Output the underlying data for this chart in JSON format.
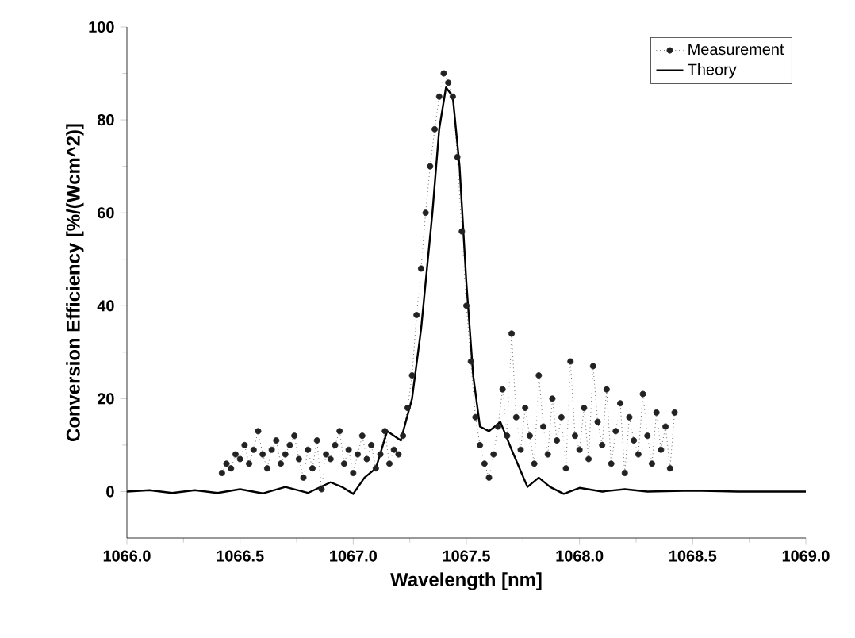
{
  "chart_data": {
    "type": "line",
    "xlabel": "Wavelength [nm]",
    "ylabel": "Conversion Efficiency [%/(Wcm^2)]",
    "xlim": [
      1066.0,
      1069.0
    ],
    "ylim": [
      -10,
      100
    ],
    "xticks": [
      {
        "value": 1066.0,
        "label": "1066.0"
      },
      {
        "value": 1066.5,
        "label": "1066.5"
      },
      {
        "value": 1067.0,
        "label": "1067.0"
      },
      {
        "value": 1067.5,
        "label": "1067.5"
      },
      {
        "value": 1068.0,
        "label": "1068.0"
      },
      {
        "value": 1068.5,
        "label": "1068.5"
      },
      {
        "value": 1069.0,
        "label": "1069.0"
      }
    ],
    "yticks": [
      0,
      20,
      40,
      60,
      80,
      100
    ],
    "legend": "top right",
    "grid": false,
    "series": [
      {
        "name": "Measurement",
        "color": "#222222",
        "marker": "circle",
        "line_style": "dotted",
        "x": [
          1066.42,
          1066.44,
          1066.46,
          1066.48,
          1066.5,
          1066.52,
          1066.54,
          1066.56,
          1066.58,
          1066.6,
          1066.62,
          1066.64,
          1066.66,
          1066.68,
          1066.7,
          1066.72,
          1066.74,
          1066.76,
          1066.78,
          1066.8,
          1066.82,
          1066.84,
          1066.86,
          1066.88,
          1066.9,
          1066.92,
          1066.94,
          1066.96,
          1066.98,
          1067.0,
          1067.02,
          1067.04,
          1067.06,
          1067.08,
          1067.1,
          1067.12,
          1067.14,
          1067.16,
          1067.18,
          1067.2,
          1067.22,
          1067.24,
          1067.26,
          1067.28,
          1067.3,
          1067.32,
          1067.34,
          1067.36,
          1067.38,
          1067.4,
          1067.42,
          1067.44,
          1067.46,
          1067.48,
          1067.5,
          1067.52,
          1067.54,
          1067.56,
          1067.58,
          1067.6,
          1067.62,
          1067.64,
          1067.66,
          1067.68,
          1067.7,
          1067.72,
          1067.74,
          1067.76,
          1067.78,
          1067.8,
          1067.82,
          1067.84,
          1067.86,
          1067.88,
          1067.9,
          1067.92,
          1067.94,
          1067.96,
          1067.98,
          1068.0,
          1068.02,
          1068.04,
          1068.06,
          1068.08,
          1068.1,
          1068.12,
          1068.14,
          1068.16,
          1068.18,
          1068.2,
          1068.22,
          1068.24,
          1068.26,
          1068.28,
          1068.3,
          1068.32,
          1068.34,
          1068.36,
          1068.38,
          1068.4,
          1068.42
        ],
        "values": [
          4,
          6,
          5,
          8,
          7,
          10,
          6,
          9,
          13,
          8,
          5,
          9,
          11,
          6,
          8,
          10,
          12,
          7,
          3,
          9,
          5,
          11,
          0.5,
          8,
          7,
          10,
          13,
          6,
          9,
          4,
          8,
          12,
          7,
          10,
          5,
          8,
          13,
          6,
          9,
          8,
          12,
          18,
          25,
          38,
          48,
          60,
          70,
          78,
          85,
          90,
          88,
          85,
          72,
          56,
          40,
          28,
          16,
          10,
          6,
          3,
          8,
          14,
          22,
          12,
          34,
          16,
          9,
          18,
          12,
          6,
          25,
          14,
          8,
          20,
          11,
          16,
          5,
          28,
          12,
          9,
          18,
          7,
          27,
          15,
          10,
          22,
          6,
          13,
          19,
          4,
          16,
          11,
          8,
          21,
          12,
          6,
          17,
          9,
          14,
          5,
          17
        ]
      },
      {
        "name": "Theory",
        "color": "#000000",
        "marker": "none",
        "line_style": "solid",
        "x": [
          1066.0,
          1066.1,
          1066.2,
          1066.3,
          1066.4,
          1066.5,
          1066.6,
          1066.7,
          1066.8,
          1066.9,
          1066.95,
          1067.0,
          1067.05,
          1067.1,
          1067.15,
          1067.21,
          1067.26,
          1067.3,
          1067.35,
          1067.38,
          1067.41,
          1067.44,
          1067.47,
          1067.5,
          1067.53,
          1067.56,
          1067.6,
          1067.65,
          1067.7,
          1067.77,
          1067.82,
          1067.87,
          1067.93,
          1068.0,
          1068.1,
          1068.2,
          1068.3,
          1068.5,
          1068.7,
          1069.0
        ],
        "values": [
          0,
          0.3,
          -0.3,
          0.3,
          -0.3,
          0.5,
          -0.4,
          1,
          -0.3,
          2,
          1,
          -0.5,
          3,
          5,
          13,
          11,
          20,
          35,
          60,
          78,
          87,
          85,
          70,
          45,
          25,
          14,
          13,
          15,
          9,
          1,
          3,
          1,
          -0.5,
          0.8,
          0,
          0.5,
          0,
          0.2,
          0,
          0
        ]
      }
    ]
  }
}
